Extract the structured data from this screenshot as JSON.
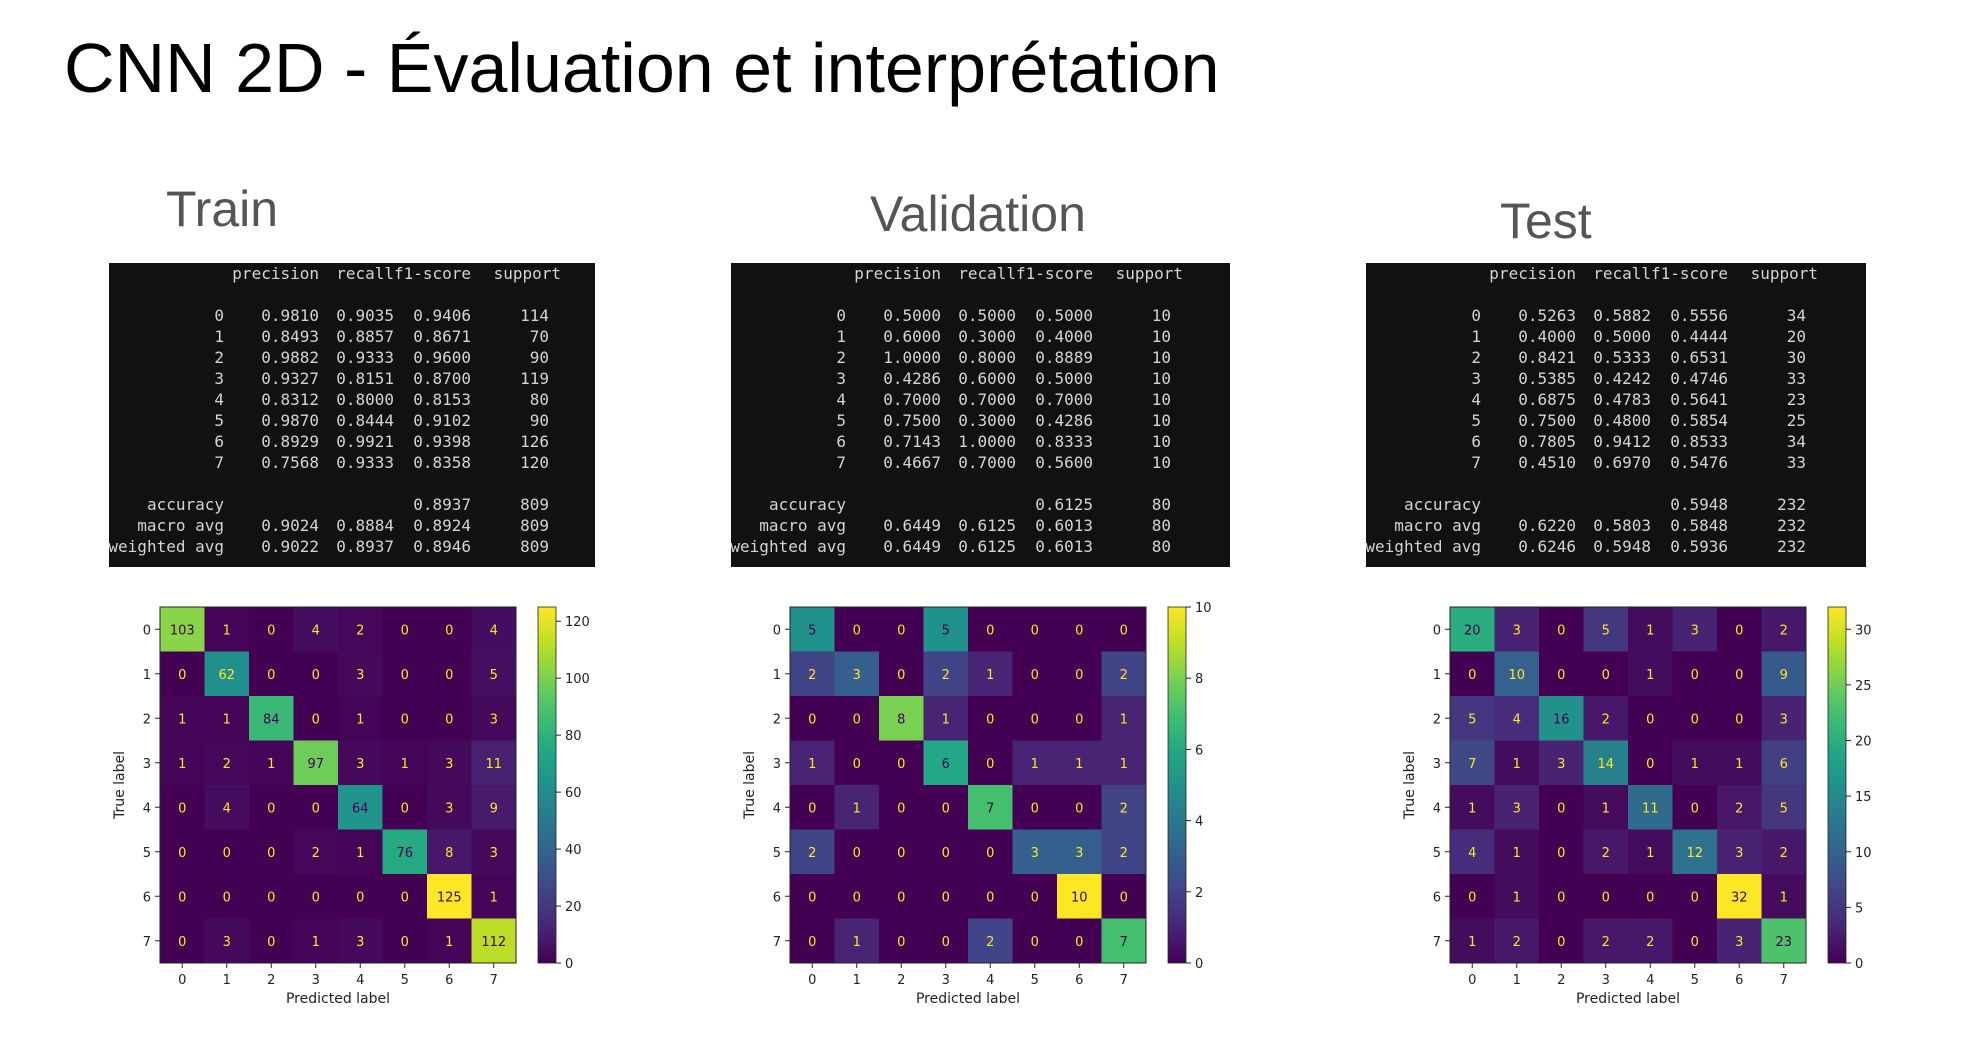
{
  "slide_title": "CNN 2D - Évaluation et interprétation",
  "sections": [
    "Train",
    "Validation",
    "Test"
  ],
  "report_headers": [
    "precision",
    "recall",
    "f1-score",
    "support"
  ],
  "reports": [
    {
      "rows": [
        [
          "0",
          "0.9810",
          "0.9035",
          "0.9406",
          "114"
        ],
        [
          "1",
          "0.8493",
          "0.8857",
          "0.8671",
          "70"
        ],
        [
          "2",
          "0.9882",
          "0.9333",
          "0.9600",
          "90"
        ],
        [
          "3",
          "0.9327",
          "0.8151",
          "0.8700",
          "119"
        ],
        [
          "4",
          "0.8312",
          "0.8000",
          "0.8153",
          "80"
        ],
        [
          "5",
          "0.9870",
          "0.8444",
          "0.9102",
          "90"
        ],
        [
          "6",
          "0.8929",
          "0.9921",
          "0.9398",
          "126"
        ],
        [
          "7",
          "0.7568",
          "0.9333",
          "0.8358",
          "120"
        ]
      ],
      "summary": [
        [
          "accuracy",
          "",
          "",
          "0.8937",
          "809"
        ],
        [
          "macro avg",
          "0.9024",
          "0.8884",
          "0.8924",
          "809"
        ],
        [
          "weighted avg",
          "0.9022",
          "0.8937",
          "0.8946",
          "809"
        ]
      ]
    },
    {
      "rows": [
        [
          "0",
          "0.5000",
          "0.5000",
          "0.5000",
          "10"
        ],
        [
          "1",
          "0.6000",
          "0.3000",
          "0.4000",
          "10"
        ],
        [
          "2",
          "1.0000",
          "0.8000",
          "0.8889",
          "10"
        ],
        [
          "3",
          "0.4286",
          "0.6000",
          "0.5000",
          "10"
        ],
        [
          "4",
          "0.7000",
          "0.7000",
          "0.7000",
          "10"
        ],
        [
          "5",
          "0.7500",
          "0.3000",
          "0.4286",
          "10"
        ],
        [
          "6",
          "0.7143",
          "1.0000",
          "0.8333",
          "10"
        ],
        [
          "7",
          "0.4667",
          "0.7000",
          "0.5600",
          "10"
        ]
      ],
      "summary": [
        [
          "accuracy",
          "",
          "",
          "0.6125",
          "80"
        ],
        [
          "macro avg",
          "0.6449",
          "0.6125",
          "0.6013",
          "80"
        ],
        [
          "weighted avg",
          "0.6449",
          "0.6125",
          "0.6013",
          "80"
        ]
      ]
    },
    {
      "rows": [
        [
          "0",
          "0.5263",
          "0.5882",
          "0.5556",
          "34"
        ],
        [
          "1",
          "0.4000",
          "0.5000",
          "0.4444",
          "20"
        ],
        [
          "2",
          "0.8421",
          "0.5333",
          "0.6531",
          "30"
        ],
        [
          "3",
          "0.5385",
          "0.4242",
          "0.4746",
          "33"
        ],
        [
          "4",
          "0.6875",
          "0.4783",
          "0.5641",
          "23"
        ],
        [
          "5",
          "0.7500",
          "0.4800",
          "0.5854",
          "25"
        ],
        [
          "6",
          "0.7805",
          "0.9412",
          "0.8533",
          "34"
        ],
        [
          "7",
          "0.4510",
          "0.6970",
          "0.5476",
          "33"
        ]
      ],
      "summary": [
        [
          "accuracy",
          "",
          "",
          "0.5948",
          "232"
        ],
        [
          "macro avg",
          "0.6220",
          "0.5803",
          "0.5848",
          "232"
        ],
        [
          "weighted avg",
          "0.6246",
          "0.5948",
          "0.5936",
          "232"
        ]
      ]
    }
  ],
  "colormap": "viridis",
  "chart_data": [
    {
      "type": "heatmap",
      "xlabel": "Predicted label",
      "ylabel": "True label",
      "x_categories": [
        "0",
        "1",
        "2",
        "3",
        "4",
        "5",
        "6",
        "7"
      ],
      "y_categories": [
        "0",
        "1",
        "2",
        "3",
        "4",
        "5",
        "6",
        "7"
      ],
      "values": [
        [
          103,
          1,
          0,
          4,
          2,
          0,
          0,
          4
        ],
        [
          0,
          62,
          0,
          0,
          3,
          0,
          0,
          5
        ],
        [
          1,
          1,
          84,
          0,
          1,
          0,
          0,
          3
        ],
        [
          1,
          2,
          1,
          97,
          3,
          1,
          3,
          11
        ],
        [
          0,
          4,
          0,
          0,
          64,
          0,
          3,
          9
        ],
        [
          0,
          0,
          0,
          2,
          1,
          76,
          8,
          3
        ],
        [
          0,
          0,
          0,
          0,
          0,
          0,
          125,
          1
        ],
        [
          0,
          3,
          0,
          1,
          3,
          0,
          1,
          112
        ]
      ],
      "vmin": 0,
      "vmax": 125,
      "colorbar_ticks": [
        0,
        20,
        40,
        60,
        80,
        100,
        120
      ]
    },
    {
      "type": "heatmap",
      "xlabel": "Predicted label",
      "ylabel": "True label",
      "x_categories": [
        "0",
        "1",
        "2",
        "3",
        "4",
        "5",
        "6",
        "7"
      ],
      "y_categories": [
        "0",
        "1",
        "2",
        "3",
        "4",
        "5",
        "6",
        "7"
      ],
      "values": [
        [
          5,
          0,
          0,
          5,
          0,
          0,
          0,
          0
        ],
        [
          2,
          3,
          0,
          2,
          1,
          0,
          0,
          2
        ],
        [
          0,
          0,
          8,
          1,
          0,
          0,
          0,
          1
        ],
        [
          1,
          0,
          0,
          6,
          0,
          1,
          1,
          1
        ],
        [
          0,
          1,
          0,
          0,
          7,
          0,
          0,
          2
        ],
        [
          2,
          0,
          0,
          0,
          0,
          3,
          3,
          2
        ],
        [
          0,
          0,
          0,
          0,
          0,
          0,
          10,
          0
        ],
        [
          0,
          1,
          0,
          0,
          2,
          0,
          0,
          7
        ]
      ],
      "vmin": 0,
      "vmax": 10,
      "colorbar_ticks": [
        0,
        2,
        4,
        6,
        8,
        10
      ]
    },
    {
      "type": "heatmap",
      "xlabel": "Predicted label",
      "ylabel": "True label",
      "x_categories": [
        "0",
        "1",
        "2",
        "3",
        "4",
        "5",
        "6",
        "7"
      ],
      "y_categories": [
        "0",
        "1",
        "2",
        "3",
        "4",
        "5",
        "6",
        "7"
      ],
      "values": [
        [
          20,
          3,
          0,
          5,
          1,
          3,
          0,
          2
        ],
        [
          0,
          10,
          0,
          0,
          1,
          0,
          0,
          9
        ],
        [
          5,
          4,
          16,
          2,
          0,
          0,
          0,
          3
        ],
        [
          7,
          1,
          3,
          14,
          0,
          1,
          1,
          6
        ],
        [
          1,
          3,
          0,
          1,
          11,
          0,
          2,
          5
        ],
        [
          4,
          1,
          0,
          2,
          1,
          12,
          3,
          2
        ],
        [
          0,
          1,
          0,
          0,
          0,
          0,
          32,
          1
        ],
        [
          1,
          2,
          0,
          2,
          2,
          0,
          3,
          23
        ]
      ],
      "vmin": 0,
      "vmax": 32,
      "colorbar_ticks": [
        0,
        5,
        10,
        15,
        20,
        25,
        30
      ]
    }
  ]
}
